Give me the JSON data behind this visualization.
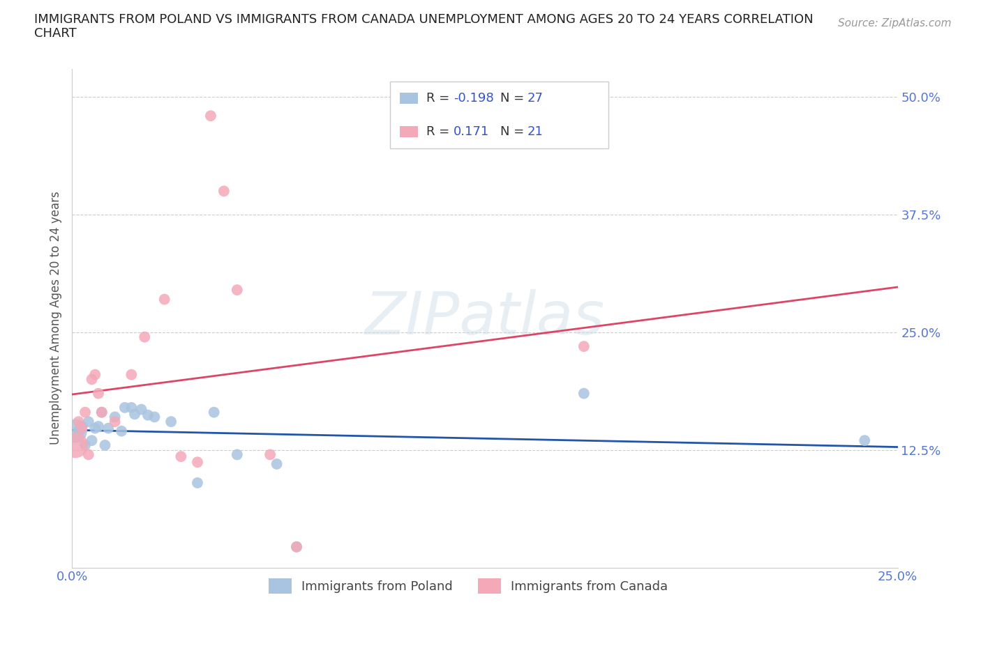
{
  "title_line1": "IMMIGRANTS FROM POLAND VS IMMIGRANTS FROM CANADA UNEMPLOYMENT AMONG AGES 20 TO 24 YEARS CORRELATION",
  "title_line2": "CHART",
  "source_text": "Source: ZipAtlas.com",
  "ylabel": "Unemployment Among Ages 20 to 24 years",
  "xlim": [
    0.0,
    0.25
  ],
  "ylim": [
    0.0,
    0.53
  ],
  "xtick_positions": [
    0.0,
    0.05,
    0.1,
    0.15,
    0.2,
    0.25
  ],
  "xticklabels": [
    "0.0%",
    "",
    "",
    "",
    "",
    "25.0%"
  ],
  "ytick_positions": [
    0.0,
    0.125,
    0.25,
    0.375,
    0.5
  ],
  "yticklabels": [
    "",
    "12.5%",
    "25.0%",
    "37.5%",
    "50.0%"
  ],
  "grid_color": "#cccccc",
  "background_color": "#ffffff",
  "poland_fill_color": "#a8c4e0",
  "canada_fill_color": "#f4a8b8",
  "poland_line_color": "#2255aa",
  "canada_line_color": "#dd4466",
  "poland_r": -0.198,
  "poland_n": 27,
  "canada_r": 0.171,
  "canada_n": 21,
  "poland_x": [
    0.001,
    0.002,
    0.003,
    0.004,
    0.005,
    0.006,
    0.007,
    0.008,
    0.009,
    0.01,
    0.011,
    0.013,
    0.015,
    0.016,
    0.018,
    0.019,
    0.021,
    0.023,
    0.025,
    0.03,
    0.038,
    0.043,
    0.05,
    0.062,
    0.068,
    0.155,
    0.24
  ],
  "poland_y": [
    0.145,
    0.145,
    0.15,
    0.13,
    0.155,
    0.135,
    0.148,
    0.15,
    0.165,
    0.13,
    0.148,
    0.16,
    0.145,
    0.17,
    0.17,
    0.163,
    0.168,
    0.162,
    0.16,
    0.155,
    0.09,
    0.165,
    0.12,
    0.11,
    0.022,
    0.185,
    0.135
  ],
  "poland_sizes": [
    600,
    130,
    130,
    130,
    130,
    130,
    130,
    130,
    130,
    130,
    130,
    130,
    130,
    130,
    130,
    130,
    130,
    130,
    130,
    130,
    130,
    130,
    130,
    130,
    130,
    130,
    130
  ],
  "canada_x": [
    0.001,
    0.002,
    0.003,
    0.004,
    0.005,
    0.006,
    0.007,
    0.008,
    0.009,
    0.013,
    0.018,
    0.022,
    0.028,
    0.033,
    0.038,
    0.042,
    0.046,
    0.05,
    0.06,
    0.068,
    0.155
  ],
  "canada_y": [
    0.13,
    0.155,
    0.148,
    0.165,
    0.12,
    0.2,
    0.205,
    0.185,
    0.165,
    0.155,
    0.205,
    0.245,
    0.285,
    0.118,
    0.112,
    0.48,
    0.4,
    0.295,
    0.12,
    0.022,
    0.235
  ],
  "canada_sizes": [
    700,
    130,
    130,
    130,
    130,
    130,
    130,
    130,
    130,
    130,
    130,
    130,
    130,
    130,
    130,
    130,
    130,
    130,
    130,
    130,
    130
  ],
  "watermark": "ZIPatlas",
  "legend_poland_label": "Immigrants from Poland",
  "legend_canada_label": "Immigrants from Canada",
  "tick_color": "#5577cc",
  "title_fontsize": 13,
  "label_fontsize": 12,
  "tick_fontsize": 13,
  "legend_fontsize": 13,
  "r_n_fontsize": 13,
  "text_color": "#333333",
  "blue_value_color": "#3355cc"
}
